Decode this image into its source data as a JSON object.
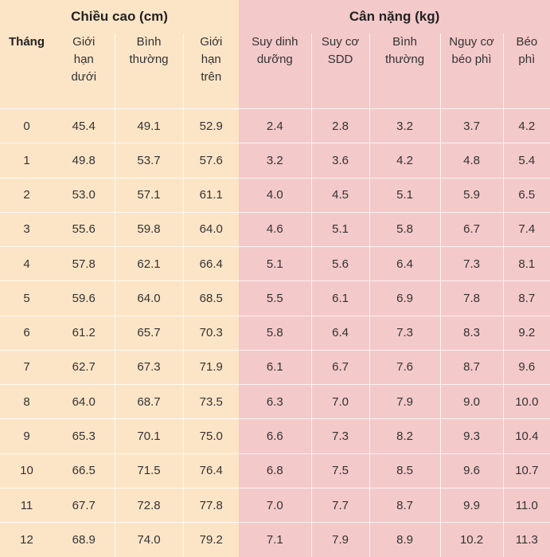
{
  "table": {
    "group_headers": [
      {
        "label": "Chiều cao (cm)",
        "span": 4
      },
      {
        "label": "Cân nặng (kg)",
        "span": 5
      }
    ],
    "column_headers": [
      "Tháng",
      "Giới\nhạn\ndưới",
      "Bình\nthường",
      "Giới\nhạn\ntrên",
      "Suy dinh\ndưỡng",
      "Suy cơ\nSDD",
      "Bình\nthường",
      "Nguy cơ\nbéo phì",
      "Béo\nphì"
    ]
  },
  "colors": {
    "height_section_bg": "#fce5c7",
    "weight_section_bg": "#f4c9ca",
    "grid_line": "#ffffff",
    "text": "#333333"
  },
  "chart_data": {
    "type": "table",
    "title": "",
    "column_groups": [
      {
        "label": "Chiều cao (cm)",
        "columns": [
          "Giới hạn dưới",
          "Bình thường",
          "Giới hạn trên"
        ]
      },
      {
        "label": "Cân nặng (kg)",
        "columns": [
          "Suy dinh dưỡng",
          "Suy cơ SDD",
          "Bình thường",
          "Nguy cơ béo phì",
          "Béo phì"
        ]
      }
    ],
    "columns": [
      "Tháng",
      "Giới hạn dưới",
      "Bình thường",
      "Giới hạn trên",
      "Suy dinh dưỡng",
      "Suy cơ SDD",
      "Bình thường",
      "Nguy cơ béo phì",
      "Béo phì"
    ],
    "rows": [
      [
        "0",
        "45.4",
        "49.1",
        "52.9",
        "2.4",
        "2.8",
        "3.2",
        "3.7",
        "4.2"
      ],
      [
        "1",
        "49.8",
        "53.7",
        "57.6",
        "3.2",
        "3.6",
        "4.2",
        "4.8",
        "5.4"
      ],
      [
        "2",
        "53.0",
        "57.1",
        "61.1",
        "4.0",
        "4.5",
        "5.1",
        "5.9",
        "6.5"
      ],
      [
        "3",
        "55.6",
        "59.8",
        "64.0",
        "4.6",
        "5.1",
        "5.8",
        "6.7",
        "7.4"
      ],
      [
        "4",
        "57.8",
        "62.1",
        "66.4",
        "5.1",
        "5.6",
        "6.4",
        "7.3",
        "8.1"
      ],
      [
        "5",
        "59.6",
        "64.0",
        "68.5",
        "5.5",
        "6.1",
        "6.9",
        "7.8",
        "8.7"
      ],
      [
        "6",
        "61.2",
        "65.7",
        "70.3",
        "5.8",
        "6.4",
        "7.3",
        "8.3",
        "9.2"
      ],
      [
        "7",
        "62.7",
        "67.3",
        "71.9",
        "6.1",
        "6.7",
        "7.6",
        "8.7",
        "9.6"
      ],
      [
        "8",
        "64.0",
        "68.7",
        "73.5",
        "6.3",
        "7.0",
        "7.9",
        "9.0",
        "10.0"
      ],
      [
        "9",
        "65.3",
        "70.1",
        "75.0",
        "6.6",
        "7.3",
        "8.2",
        "9.3",
        "10.4"
      ],
      [
        "10",
        "66.5",
        "71.5",
        "76.4",
        "6.8",
        "7.5",
        "8.5",
        "9.6",
        "10.7"
      ],
      [
        "11",
        "67.7",
        "72.8",
        "77.8",
        "7.0",
        "7.7",
        "8.7",
        "9.9",
        "11.0"
      ],
      [
        "12",
        "68.9",
        "74.0",
        "79.2",
        "7.1",
        "7.9",
        "8.9",
        "10.2",
        "11.3"
      ]
    ]
  }
}
